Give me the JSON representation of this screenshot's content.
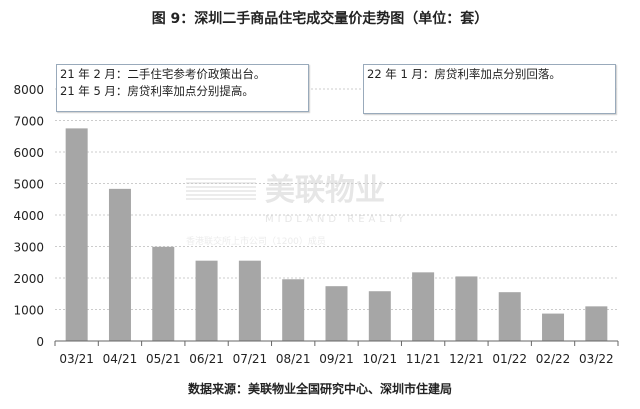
{
  "chart_data": {
    "type": "bar",
    "title": "图 9：深圳二手商品住宅成交量价走势图（单位：套）",
    "categories": [
      "03/21",
      "04/21",
      "05/21",
      "06/21",
      "07/21",
      "08/21",
      "09/21",
      "10/21",
      "11/21",
      "12/21",
      "01/22",
      "02/22",
      "03/22"
    ],
    "values": [
      6750,
      4830,
      2990,
      2550,
      2550,
      1960,
      1740,
      1580,
      2180,
      2050,
      1550,
      870,
      1100
    ],
    "ylim": [
      0,
      8000
    ],
    "yticks": [
      0,
      1000,
      2000,
      3000,
      4000,
      5000,
      6000,
      7000,
      8000
    ],
    "grid": true,
    "bar_color": "#a6a6a6",
    "annotations": [
      [
        "21 年 2 月：二手住宅参考价政策出台。",
        "21 年 5 月：房贷利率加点分别提高。"
      ],
      [
        "22 年 1 月：房贷利率加点分别回落。"
      ]
    ],
    "source": "数据来源：美联物业全国研究中心、深圳市住建局"
  },
  "watermark": {
    "name": "美联物业",
    "en": "MIDLAND REALTY",
    "sub": "香港联交所上市公司（1200）成员"
  }
}
